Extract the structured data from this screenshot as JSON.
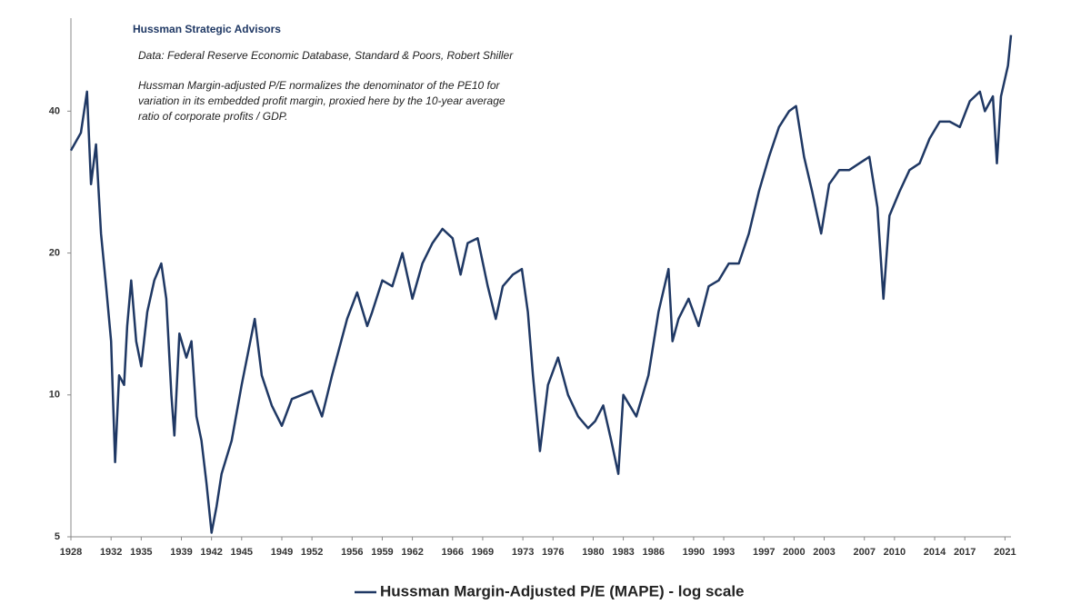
{
  "chart_data": {
    "type": "line",
    "source": "Hussman Strategic Advisors",
    "data_note": "Data: Federal Reserve Economic Database, Standard & Poors, Robert Shiller",
    "note": [
      "Hussman Margin-adjusted P/E normalizes the denominator of the PE10 for",
      "variation in its embedded profit margin, proxied here by the 10-year average",
      "ratio of corporate profits / GDP."
    ],
    "log_scale": true,
    "legend": "bottom",
    "xlim": [
      1928,
      2021.6
    ],
    "xticks": [
      1928,
      1932,
      1935,
      1939,
      1942,
      1945,
      1949,
      1952,
      1956,
      1959,
      1962,
      1966,
      1969,
      1973,
      1976,
      1980,
      1983,
      1986,
      1990,
      1993,
      1997,
      2000,
      2003,
      2007,
      2010,
      2014,
      2017,
      2021
    ],
    "ylim": [
      5,
      63
    ],
    "yticks": [
      5,
      10,
      20,
      40
    ],
    "series": [
      {
        "name": "Hussman Margin-Adjusted P/E (MAPE) - log scale",
        "color": "#1f3864",
        "x": [
          1928,
          1929,
          1929.6,
          1930,
          1930.5,
          1931,
          1931.5,
          1932,
          1932.4,
          1932.8,
          1933.3,
          1933.6,
          1934,
          1934.5,
          1935,
          1935.6,
          1936.3,
          1937,
          1937.5,
          1938,
          1938.3,
          1938.8,
          1939.5,
          1940,
          1940.5,
          1941,
          1941.5,
          1942,
          1942.5,
          1943,
          1944,
          1945,
          1946.3,
          1947,
          1948,
          1949,
          1950,
          1951,
          1952,
          1953,
          1954,
          1955.5,
          1956.5,
          1957.5,
          1958,
          1959,
          1960,
          1961,
          1962,
          1963,
          1964,
          1965,
          1966,
          1966.8,
          1967.5,
          1968.5,
          1969.5,
          1970.3,
          1971,
          1972,
          1972.9,
          1973.5,
          1974,
          1974.7,
          1975.5,
          1976.5,
          1977.5,
          1978.5,
          1979.5,
          1980.2,
          1981,
          1981.8,
          1982.5,
          1983,
          1984.3,
          1985.5,
          1986.5,
          1987.5,
          1987.9,
          1988.5,
          1989.5,
          1990.5,
          1991.5,
          1992.5,
          1993.5,
          1994.5,
          1995.5,
          1996.5,
          1997.5,
          1998.5,
          1999.5,
          2000.2,
          2001,
          2001.8,
          2002.7,
          2003.5,
          2004.5,
          2005.5,
          2006.5,
          2007.5,
          2008.3,
          2008.9,
          2009.5,
          2010.5,
          2011.5,
          2012.5,
          2013.5,
          2014.5,
          2015.5,
          2016.5,
          2017.5,
          2018.5,
          2019,
          2019.8,
          2020.2,
          2020.6,
          2021.3,
          2021.6
        ],
        "values": [
          33,
          36,
          44,
          28,
          34,
          22,
          17,
          13,
          7.2,
          11,
          10.5,
          14,
          17.5,
          13,
          11.5,
          15,
          17.5,
          19,
          16,
          10,
          8.2,
          13.5,
          12,
          13,
          9,
          8,
          6.5,
          5.1,
          5.8,
          6.8,
          8,
          10.5,
          14.5,
          11,
          9.5,
          8.6,
          9.8,
          10,
          10.2,
          9,
          11,
          14.5,
          16.5,
          14,
          15,
          17.5,
          17,
          20,
          16,
          19,
          21,
          22.5,
          21.5,
          18,
          21,
          21.5,
          17,
          14.5,
          17,
          18,
          18.5,
          15,
          11,
          7.6,
          10.5,
          12,
          10,
          9,
          8.5,
          8.8,
          9.5,
          8,
          6.8,
          10,
          9,
          11,
          15,
          18.5,
          13,
          14.5,
          16,
          14,
          17,
          17.5,
          19,
          19,
          22,
          27,
          32,
          37,
          40,
          41,
          32,
          27,
          22,
          28,
          30,
          30,
          31,
          32,
          25,
          16,
          24,
          27,
          30,
          31,
          35,
          38,
          38,
          37,
          42,
          44,
          40,
          43,
          31,
          43,
          50,
          58
        ]
      }
    ]
  }
}
